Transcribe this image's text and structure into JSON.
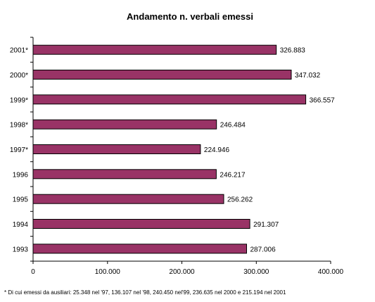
{
  "chart_data": {
    "type": "bar",
    "orientation": "horizontal",
    "title": "Andamento n. verbali emessi",
    "categories": [
      "2001*",
      "2000*",
      "1999*",
      "1998*",
      "1997*",
      "1996",
      "1995",
      "1994",
      "1993"
    ],
    "values": [
      326883,
      347032,
      366557,
      246484,
      224946,
      246217,
      256262,
      291307,
      287006
    ],
    "data_labels": [
      "326.883",
      "347.032",
      "366.557",
      "246.484",
      "224.946",
      "246.217",
      "256.262",
      "291.307",
      "287.006"
    ],
    "x_ticks": [
      0,
      100000,
      200000,
      300000,
      400000
    ],
    "x_tick_labels": [
      "0",
      "100.000",
      "200.000",
      "300.000",
      "400.000"
    ],
    "xlim": [
      0,
      400000
    ],
    "grid": false,
    "legend": "none",
    "bar_color": "#993366",
    "footnote": "* Di cui emessi da ausiliari: 25.348 nel '97, 136.107 nel '98, 240.450 nel'99, 236.635 nel 2000 e 215.194 nel 2001"
  }
}
